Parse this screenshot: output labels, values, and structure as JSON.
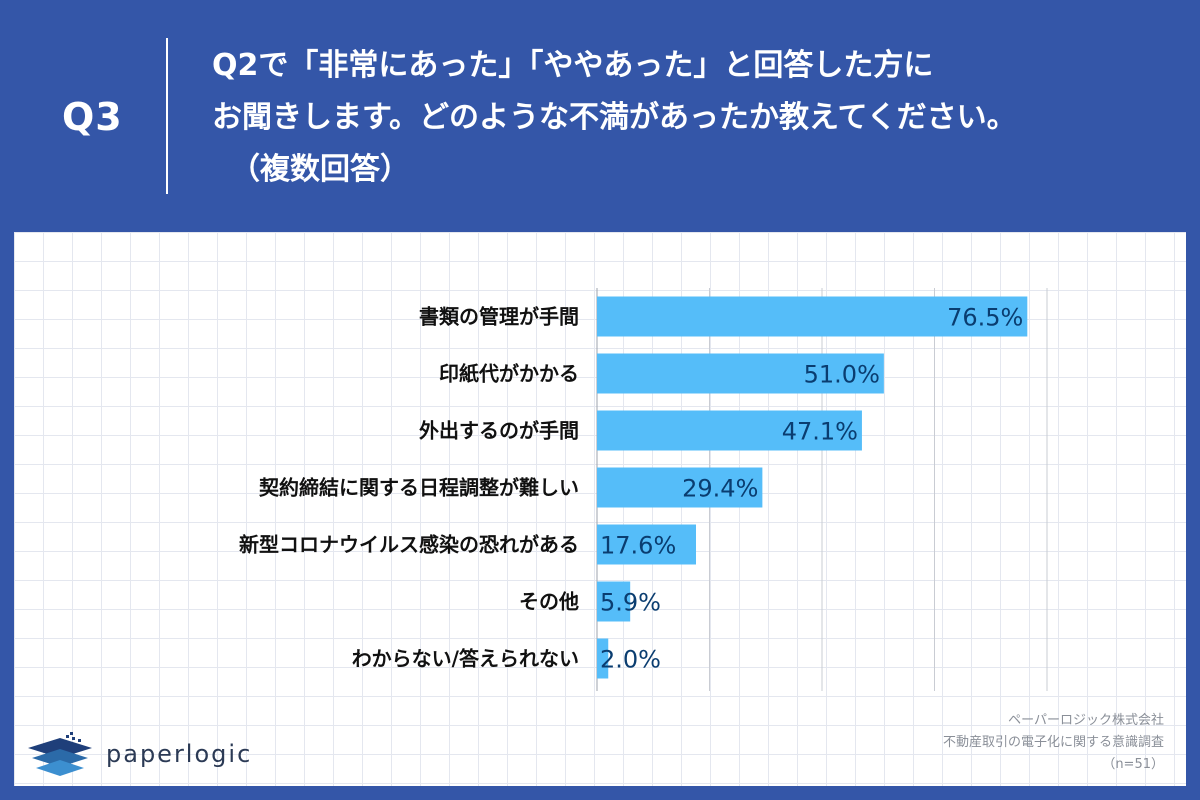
{
  "header": {
    "q_label": "Q3",
    "question_lines": [
      "Q2で「非常にあった」「ややあった」と回答した方に",
      "お聞きします。どのような不満があったか教えてください。",
      "（複数回答）"
    ]
  },
  "chart_data": {
    "type": "bar",
    "orientation": "horizontal",
    "categories": [
      "書類の管理が手間",
      "印紙代がかかる",
      "外出するのが手間",
      "契約締結に関する日程調整が難しい",
      "新型コロナウイルス感染の恐れがある",
      "その他",
      "わからない/答えられない"
    ],
    "values": [
      76.5,
      51.0,
      47.1,
      29.4,
      17.6,
      5.9,
      2.0
    ],
    "value_labels": [
      "76.5%",
      "51.0%",
      "47.1%",
      "29.4%",
      "17.6%",
      "5.9%",
      "2.0%"
    ],
    "xlim": [
      0,
      80
    ],
    "grid": true,
    "bar_color": "#55bdf9",
    "label_color": "#0a3d70"
  },
  "footer": {
    "company": "ペーパーロジック株式会社",
    "survey": "不動産取引の電子化に関する意識調査",
    "sample": "（n=51）"
  },
  "logo": {
    "text": "paperlogic",
    "icon": "layered-stack-logo-icon"
  }
}
